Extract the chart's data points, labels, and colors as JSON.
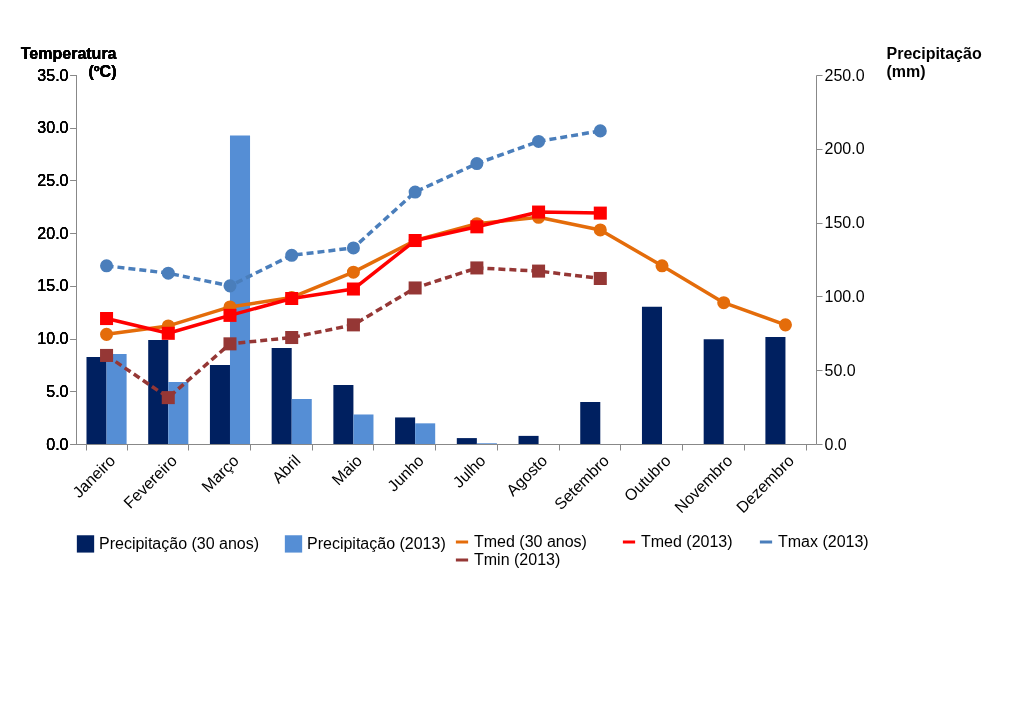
{
  "chart_data": {
    "type": "bar",
    "ylabel": "Temperatura (ºC)",
    "y2label": "Precipitação (mm)",
    "categories": [
      "Janeiro",
      "Fevereiro",
      "Março",
      "Abril",
      "Maio",
      "Junho",
      "Julho",
      "Agosto",
      "Setembro",
      "Outubro",
      "Novembro",
      "Dezembro"
    ],
    "ylim": [
      0,
      35
    ],
    "yticks": [
      {
        "value": 0,
        "label": "0.0"
      },
      {
        "value": 5,
        "label": "5.0"
      },
      {
        "value": 10,
        "label": "10.0"
      },
      {
        "value": 15,
        "label": "15.0"
      },
      {
        "value": 20,
        "label": "20.0"
      },
      {
        "value": 25,
        "label": "25.0"
      },
      {
        "value": 30,
        "label": "30.0"
      },
      {
        "value": 35,
        "label": "35.0"
      }
    ],
    "y2lim": [
      0,
      250
    ],
    "y2ticks": [
      {
        "value": 0,
        "label": "0.0"
      },
      {
        "value": 50,
        "label": "50.0"
      },
      {
        "value": 100,
        "label": "100.0"
      },
      {
        "value": 150,
        "label": "150.0"
      },
      {
        "value": 200,
        "label": "200.0"
      },
      {
        "value": 250,
        "label": "250.0"
      }
    ],
    "grid": false,
    "legend": "bottom",
    "series": [
      {
        "name": "Precipitação  (30 anos)",
        "axis": "y2",
        "color": "#002060",
        "values": [
          59,
          70.5,
          53.5,
          65,
          40,
          18,
          4,
          5.5,
          28.5,
          93,
          71,
          72.5
        ]
      },
      {
        "name": "Precipitação (2013)",
        "axis": "y2",
        "color": "#558ed5",
        "values": [
          61,
          42,
          209,
          30.5,
          20,
          14,
          0.5,
          null,
          null,
          null,
          null,
          null
        ]
      },
      {
        "name": "Tmed   (30 anos)",
        "type": "line",
        "color": "#e46c0a",
        "marker": "circle",
        "line_style": "solid",
        "values": [
          10.4,
          11.2,
          13.0,
          13.9,
          16.3,
          19.3,
          20.9,
          21.5,
          20.3,
          16.9,
          13.4,
          11.3
        ]
      },
      {
        "name": "Tmed (2013)",
        "type": "line",
        "color": "#ff0000",
        "marker": "square",
        "line_style": "solid",
        "values": [
          11.9,
          10.5,
          12.2,
          13.8,
          14.7,
          19.3,
          20.6,
          22.0,
          21.9,
          null,
          null,
          null
        ]
      },
      {
        "name": "Tmax (2013)",
        "type": "line",
        "color": "#4a7ebb",
        "marker": "circle",
        "line_style": "dashed",
        "values": [
          16.9,
          16.2,
          15.0,
          17.9,
          18.6,
          23.9,
          26.6,
          28.7,
          29.7,
          null,
          null,
          null
        ]
      },
      {
        "name": "Tmin (2013)",
        "type": "line",
        "color": "#953735",
        "marker": "square",
        "line_style": "dashed",
        "values": [
          8.4,
          4.4,
          9.5,
          10.1,
          11.3,
          14.8,
          16.7,
          16.4,
          15.7,
          null,
          null,
          null
        ]
      }
    ]
  }
}
